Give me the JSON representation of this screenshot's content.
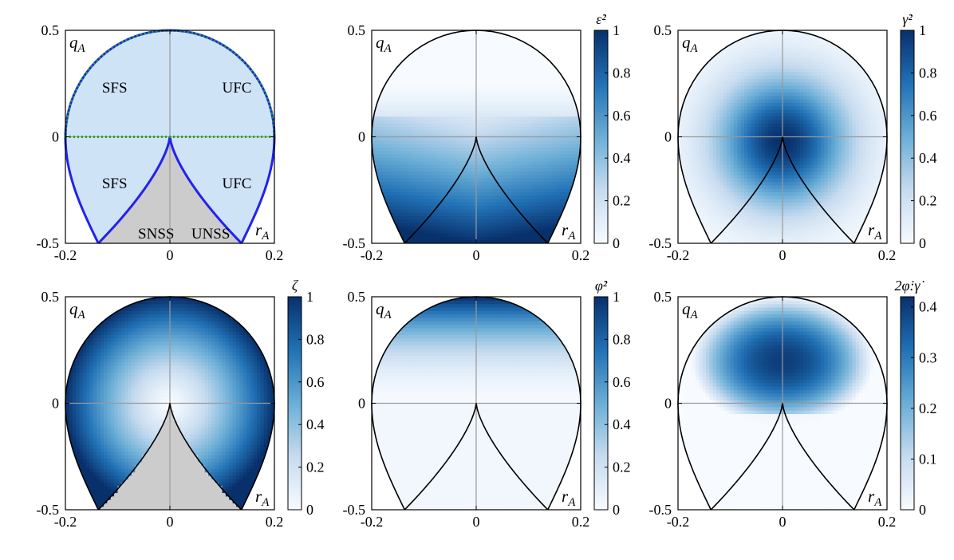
{
  "chart_data": [
    {
      "type": "area",
      "panel": "region-map",
      "xlim": [
        -0.2,
        0.2
      ],
      "ylim": [
        -0.5,
        0.5
      ],
      "xticks": [
        "-0.2",
        "0",
        "0.2"
      ],
      "yticks": [
        "-0.5",
        "0",
        "0.5"
      ],
      "x_label": "r",
      "x_label_sub": "A",
      "y_label": "q",
      "y_label_sub": "A",
      "regions": [
        {
          "label": "SFS",
          "x": -0.13,
          "y": 0.23,
          "fill": "#cfe3f7"
        },
        {
          "label": "UFC",
          "x": 0.1,
          "y": 0.23,
          "fill": "#cfe3f7"
        },
        {
          "label": "SFS",
          "x": -0.13,
          "y": -0.22,
          "fill": "#cfe3f7"
        },
        {
          "label": "UFC",
          "x": 0.1,
          "y": -0.22,
          "fill": "#cfe3f7"
        },
        {
          "label": "SNSS",
          "x": -0.061,
          "y": -0.455,
          "fill": "#cccccc"
        },
        {
          "label": "UNSS",
          "x": 0.041,
          "y": -0.455,
          "fill": "#cccccc"
        }
      ],
      "boundary_color": "#2222ee",
      "dotted_line_color": "#22aa22"
    },
    {
      "type": "heatmap",
      "panel": "strain-rate",
      "colorbar_title": "ε̇²",
      "clim": [
        0,
        1
      ],
      "colorbar_ticks": [
        "0",
        "0.2",
        "0.4",
        "0.6",
        "0.8",
        "1"
      ],
      "xticks": [
        "-0.2",
        "0",
        "0.2"
      ],
      "yticks": [
        "-0.5",
        "0",
        "0.5"
      ],
      "x_label": "r",
      "x_label_sub": "A",
      "y_label": "q",
      "y_label_sub": "A"
    },
    {
      "type": "heatmap",
      "panel": "shear-rate",
      "colorbar_title": "γ̇²",
      "clim": [
        0,
        1
      ],
      "colorbar_ticks": [
        "0",
        "0.2",
        "0.4",
        "0.6",
        "0.8",
        "1"
      ],
      "xticks": [
        "-0.2",
        "0",
        "0.2"
      ],
      "yticks": [
        "-0.5",
        "0",
        "0.5"
      ],
      "x_label": "r",
      "x_label_sub": "A",
      "y_label": "q",
      "y_label_sub": "A"
    },
    {
      "type": "heatmap",
      "panel": "zeta",
      "colorbar_title": "ζ",
      "clim": [
        0,
        1
      ],
      "colorbar_ticks": [
        "0",
        "0.2",
        "0.4",
        "0.6",
        "0.8",
        "1"
      ],
      "xticks": [
        "-0.2",
        "0",
        "0.2"
      ],
      "yticks": [
        "-0.5",
        "0",
        "0.5"
      ],
      "x_label": "r",
      "x_label_sub": "A",
      "y_label": "q",
      "y_label_sub": "A"
    },
    {
      "type": "heatmap",
      "panel": "rotation-rate",
      "colorbar_title": "φ̇²",
      "clim": [
        0,
        1
      ],
      "colorbar_ticks": [
        "0",
        "0.2",
        "0.4",
        "0.6",
        "0.8",
        "1"
      ],
      "xticks": [
        "-0.2",
        "0",
        "0.2"
      ],
      "yticks": [
        "-0.5",
        "0",
        "0.5"
      ],
      "x_label": "r",
      "x_label_sub": "A",
      "y_label": "q",
      "y_label_sub": "A"
    },
    {
      "type": "heatmap",
      "panel": "coupling",
      "colorbar_title": "2φ̇:γ̇",
      "clim": [
        0,
        0.42
      ],
      "colorbar_ticks": [
        "0",
        "0.1",
        "0.2",
        "0.3",
        "0.4"
      ],
      "xticks": [
        "-0.2",
        "0",
        "0.2"
      ],
      "yticks": [
        "-0.5",
        "0",
        "0.5"
      ],
      "x_label": "r",
      "x_label_sub": "A",
      "y_label": "q",
      "y_label_sub": "A"
    }
  ],
  "colormap": {
    "low": "#f7fbff",
    "mid": "#6baed6",
    "high": "#08306b"
  }
}
